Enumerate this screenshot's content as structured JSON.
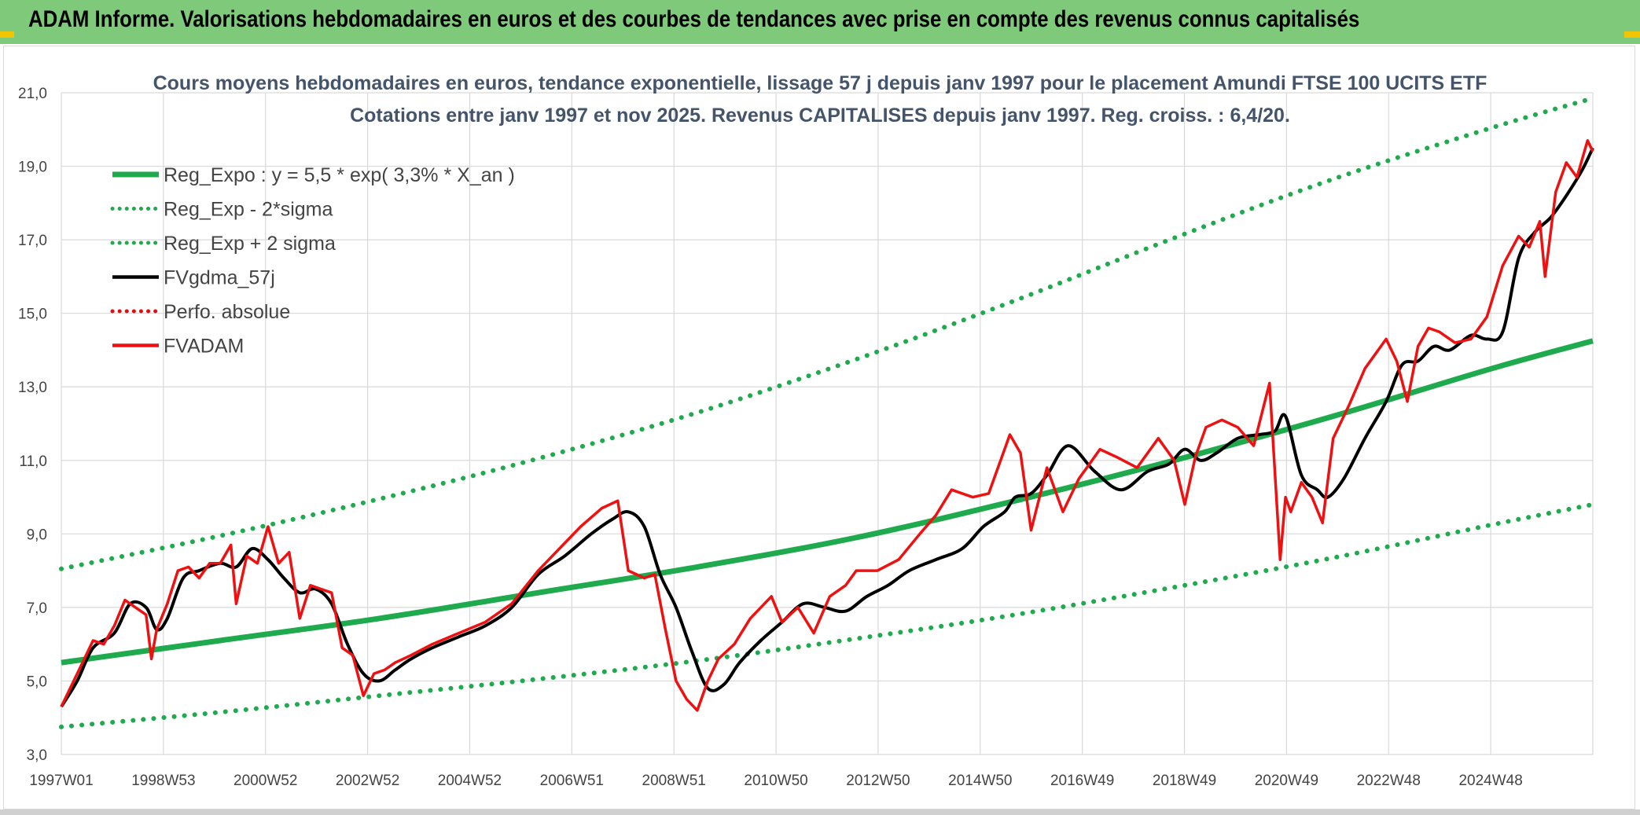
{
  "banner": {
    "title": "ADAM Informe. Valorisations hebdomadaires en euros et des courbes de tendances avec prise en compte des revenus connus capitalisés"
  },
  "colors": {
    "banner_bg": "#7ec97a",
    "regression": "#1faa4e",
    "smoothed": "#000000",
    "price": "#ee1111",
    "perf": "#dd1111",
    "grid": "#d9d9d9",
    "corner": "#f2c500"
  },
  "chart_data": {
    "type": "line",
    "title": "Cours moyens hebdomadaires en euros, tendance exponentielle, lissage 57 j depuis janv 1997 pour le placement Amundi FTSE 100 UCITS ETF",
    "subtitle": "Cotations entre janv 1997 et nov 2025. Revenus CAPITALISES depuis janv 1997. Reg. croiss. : 6,4/20.",
    "xlabel": "",
    "ylabel": "",
    "ylim": [
      3.0,
      21.0
    ],
    "yticks": [
      "21,0",
      "19,0",
      "17,0",
      "15,0",
      "13,0",
      "11,0",
      "9,0",
      "7,0",
      "5,0",
      "3,0"
    ],
    "xlim": [
      1997.0,
      2025.9
    ],
    "xticks": [
      "1997W01",
      "1998W53",
      "2000W52",
      "2002W52",
      "2004W52",
      "2006W51",
      "2008W51",
      "2010W50",
      "2012W50",
      "2014W50",
      "2016W49",
      "2018W49",
      "2020W49",
      "2022W48",
      "2024W48"
    ],
    "grid": true,
    "legend_position": "top-left",
    "legend": [
      {
        "label": "Reg_Expo : y = 5,5 * exp( 3,3% *  X_an )",
        "style": "solid-thick",
        "color": "#1faa4e"
      },
      {
        "label": "Reg_Exp - 2*sigma",
        "style": "dotted",
        "color": "#1faa4e"
      },
      {
        "label": "Reg_Exp + 2 sigma",
        "style": "dotted",
        "color": "#1faa4e"
      },
      {
        "label": "FVgdma_57j",
        "style": "solid",
        "color": "#000000"
      },
      {
        "label": "Perfo. absolue",
        "style": "dotted",
        "color": "#dd1111"
      },
      {
        "label": "FVADAM",
        "style": "solid",
        "color": "#ee1111"
      }
    ],
    "series": [
      {
        "name": "Reg_Expo : y = 5,5 * exp( 3,3% *  X_an )",
        "x": [
          1997.0,
          2000.0,
          2003.0,
          2006.0,
          2009.0,
          2012.0,
          2015.0,
          2018.0,
          2021.0,
          2024.0,
          2025.9
        ],
        "values": [
          5.5,
          6.1,
          6.7,
          7.4,
          8.1,
          8.9,
          9.9,
          11.0,
          12.2,
          13.5,
          14.25
        ]
      },
      {
        "name": "Reg_Exp - 2*sigma",
        "x": [
          1997.0,
          2000.0,
          2003.0,
          2006.0,
          2009.0,
          2012.0,
          2015.0,
          2018.0,
          2021.0,
          2024.0,
          2025.9
        ],
        "values": [
          3.75,
          4.15,
          4.6,
          5.05,
          5.55,
          6.15,
          6.8,
          7.55,
          8.35,
          9.25,
          9.8
        ]
      },
      {
        "name": "Reg_Exp + 2 sigma",
        "x": [
          1997.0,
          2000.0,
          2003.0,
          2006.0,
          2009.0,
          2012.0,
          2015.0,
          2018.0,
          2021.0,
          2024.0,
          2025.9
        ],
        "values": [
          8.05,
          8.95,
          9.95,
          11.05,
          12.3,
          13.75,
          15.35,
          17.05,
          18.65,
          20.05,
          20.85
        ]
      },
      {
        "name": "FVgdma_57j",
        "x": [
          1997.0,
          1997.3,
          1997.6,
          1998.0,
          1998.3,
          1998.6,
          1998.8,
          1999.0,
          1999.3,
          1999.6,
          2000.0,
          2000.3,
          2000.6,
          2000.9,
          2001.2,
          2001.5,
          2001.8,
          2002.1,
          2002.4,
          2002.7,
          2003.0,
          2003.3,
          2003.6,
          2004.0,
          2004.5,
          2005.0,
          2005.5,
          2006.0,
          2006.5,
          2007.0,
          2007.4,
          2007.7,
          2008.0,
          2008.3,
          2008.6,
          2008.9,
          2009.2,
          2009.5,
          2009.8,
          2010.2,
          2010.6,
          2011.0,
          2011.4,
          2011.8,
          2012.2,
          2012.6,
          2013.0,
          2013.5,
          2014.0,
          2014.4,
          2014.8,
          2015.0,
          2015.3,
          2015.6,
          2016.0,
          2016.5,
          2017.0,
          2017.5,
          2017.9,
          2018.2,
          2018.5,
          2018.8,
          2019.2,
          2019.6,
          2019.9,
          2020.1,
          2020.4,
          2020.7,
          2020.9,
          2021.2,
          2021.6,
          2022.0,
          2022.3,
          2022.6,
          2022.9,
          2023.2,
          2023.6,
          2023.9,
          2024.2,
          2024.5,
          2024.8,
          2025.1,
          2025.4,
          2025.7,
          2025.9
        ],
        "values": [
          4.3,
          5.0,
          5.9,
          6.3,
          7.1,
          7.0,
          6.4,
          6.7,
          7.8,
          8.0,
          8.2,
          8.1,
          8.6,
          8.3,
          7.8,
          7.4,
          7.5,
          7.1,
          6.0,
          5.2,
          5.0,
          5.3,
          5.6,
          5.9,
          6.2,
          6.5,
          7.0,
          7.9,
          8.4,
          9.0,
          9.4,
          9.6,
          9.2,
          7.9,
          7.0,
          5.8,
          4.8,
          4.9,
          5.5,
          6.1,
          6.6,
          7.1,
          7.0,
          6.9,
          7.3,
          7.6,
          8.0,
          8.3,
          8.6,
          9.2,
          9.6,
          10.0,
          10.1,
          10.6,
          11.4,
          10.7,
          10.2,
          10.7,
          10.9,
          11.3,
          11.0,
          11.2,
          11.6,
          11.7,
          11.8,
          12.2,
          10.6,
          10.2,
          10.0,
          10.5,
          11.6,
          12.6,
          13.6,
          13.7,
          14.1,
          14.0,
          14.4,
          14.3,
          14.5,
          16.5,
          17.2,
          17.6,
          18.2,
          18.9,
          19.5
        ]
      },
      {
        "name": "FVADAM",
        "x": [
          1997.0,
          1997.2,
          1997.4,
          1997.6,
          1997.8,
          1998.0,
          1998.2,
          1998.4,
          1998.6,
          1998.7,
          1998.8,
          1999.0,
          1999.2,
          1999.4,
          1999.6,
          1999.8,
          2000.0,
          2000.2,
          2000.3,
          2000.5,
          2000.7,
          2000.9,
          2001.1,
          2001.3,
          2001.5,
          2001.7,
          2001.9,
          2002.1,
          2002.3,
          2002.5,
          2002.7,
          2002.9,
          2003.1,
          2003.3,
          2003.6,
          2004.0,
          2004.5,
          2005.0,
          2005.5,
          2006.0,
          2006.4,
          2006.8,
          2007.2,
          2007.5,
          2007.7,
          2008.0,
          2008.2,
          2008.4,
          2008.6,
          2008.8,
          2009.0,
          2009.2,
          2009.4,
          2009.7,
          2010.0,
          2010.4,
          2010.6,
          2010.9,
          2011.2,
          2011.5,
          2011.8,
          2012.0,
          2012.4,
          2012.8,
          2013.2,
          2013.5,
          2013.8,
          2014.2,
          2014.5,
          2014.9,
          2015.1,
          2015.3,
          2015.6,
          2015.9,
          2016.2,
          2016.4,
          2016.6,
          2016.9,
          2017.3,
          2017.7,
          2018.0,
          2018.2,
          2018.4,
          2018.6,
          2018.9,
          2019.2,
          2019.5,
          2019.8,
          2020.0,
          2020.1,
          2020.2,
          2020.4,
          2020.6,
          2020.8,
          2021.0,
          2021.3,
          2021.6,
          2022.0,
          2022.2,
          2022.4,
          2022.6,
          2022.8,
          2023.0,
          2023.3,
          2023.6,
          2023.9,
          2024.2,
          2024.5,
          2024.7,
          2024.9,
          2025.0,
          2025.2,
          2025.4,
          2025.6,
          2025.8,
          2025.9
        ],
        "values": [
          4.3,
          4.9,
          5.5,
          6.1,
          6.0,
          6.5,
          7.2,
          7.0,
          6.8,
          5.6,
          6.4,
          7.1,
          8.0,
          8.1,
          7.8,
          8.2,
          8.2,
          8.7,
          7.1,
          8.4,
          8.2,
          9.2,
          8.2,
          8.5,
          6.7,
          7.6,
          7.5,
          7.4,
          5.9,
          5.7,
          4.6,
          5.2,
          5.3,
          5.5,
          5.7,
          6.0,
          6.3,
          6.6,
          7.1,
          8.0,
          8.6,
          9.2,
          9.7,
          9.9,
          8.0,
          7.8,
          7.9,
          6.4,
          5.0,
          4.5,
          4.2,
          5.0,
          5.6,
          6.0,
          6.7,
          7.3,
          6.6,
          7.0,
          6.3,
          7.3,
          7.6,
          8.0,
          8.0,
          8.3,
          9.0,
          9.5,
          10.2,
          10.0,
          10.1,
          11.7,
          11.2,
          9.1,
          10.8,
          9.6,
          10.5,
          10.9,
          11.3,
          11.1,
          10.8,
          11.6,
          11.0,
          9.8,
          11.1,
          11.9,
          12.1,
          11.9,
          11.4,
          13.1,
          8.3,
          10.0,
          9.6,
          10.4,
          10.0,
          9.3,
          11.6,
          12.5,
          13.5,
          14.3,
          13.7,
          12.6,
          14.1,
          14.6,
          14.5,
          14.2,
          14.3,
          14.9,
          16.3,
          17.1,
          16.8,
          17.5,
          16.0,
          18.3,
          19.1,
          18.7,
          19.7,
          19.4
        ]
      }
    ]
  }
}
